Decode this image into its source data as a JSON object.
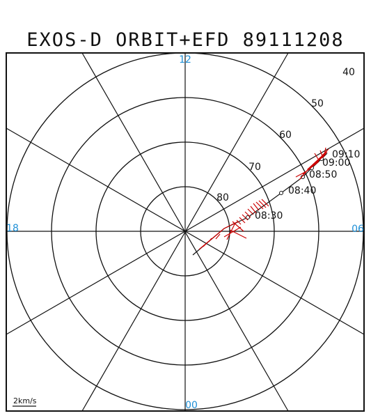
{
  "title": "EXOS-D ORBIT+EFD 89111208",
  "mlt_labels": {
    "top": "12",
    "right": "06",
    "bottom": "00",
    "left": "18"
  },
  "latitude_labels": [
    "80",
    "70",
    "60",
    "50",
    "40"
  ],
  "time_labels": [
    "08:30",
    "08:40",
    "08:50",
    "09:00",
    "09:10"
  ],
  "scale_label": "2km/s",
  "colors": {
    "grid": "#111111",
    "mlt_label": "#1e8fd6",
    "trace": "#cc0000"
  }
}
